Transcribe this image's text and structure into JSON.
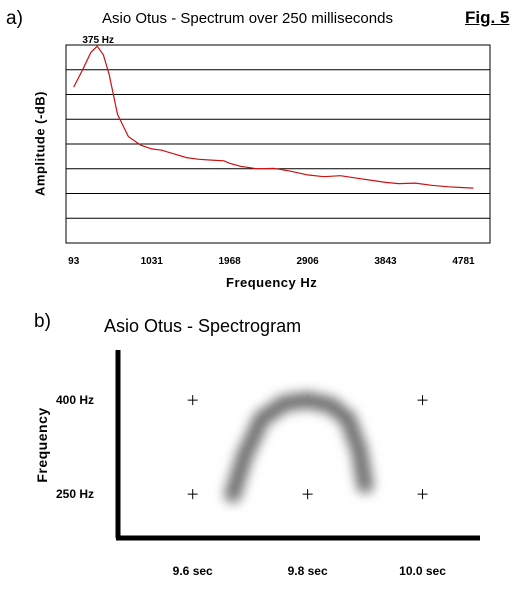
{
  "figure": {
    "panel_a_label": "a)",
    "panel_b_label": "b)",
    "fig_label": "Fig. 5"
  },
  "chart_data": [
    {
      "type": "line",
      "title": "Asio Otus - Spectrum over 250 milliseconds",
      "xlabel": "Frequency  Hz",
      "ylabel": "Amplitude (-dB)",
      "x_tick_labels": [
        "93",
        "1031",
        "1968",
        "2906",
        "3843",
        "4781"
      ],
      "x_ticks": [
        93,
        1031,
        1968,
        2906,
        3843,
        4781
      ],
      "xlim": [
        0,
        5100
      ],
      "ylim": [
        0,
        8
      ],
      "grid": "horizontal",
      "line_color": "#cc1111",
      "annotation": {
        "text": "375 Hz",
        "x": 375
      },
      "series": [
        {
          "x": [
            93,
            200,
            300,
            375,
            450,
            520,
            620,
            750,
            900,
            1031,
            1150,
            1300,
            1450,
            1600,
            1750,
            1900,
            1968,
            2100,
            2300,
            2500,
            2700,
            2906,
            3100,
            3300,
            3500,
            3700,
            3843,
            4000,
            4200,
            4400,
            4600,
            4781,
            4900
          ],
          "y": [
            6.3,
            7.0,
            7.7,
            7.95,
            7.6,
            6.8,
            5.2,
            4.3,
            3.95,
            3.8,
            3.75,
            3.6,
            3.45,
            3.38,
            3.35,
            3.32,
            3.22,
            3.1,
            3.0,
            3.02,
            2.9,
            2.75,
            2.68,
            2.72,
            2.62,
            2.52,
            2.45,
            2.4,
            2.42,
            2.33,
            2.27,
            2.24,
            2.22
          ]
        }
      ]
    },
    {
      "type": "heatmap",
      "title": "Asio Otus - Spectrogram",
      "xlabel": "",
      "ylabel": "Frequency",
      "y_tick_labels": [
        "400 Hz",
        "250 Hz"
      ],
      "x_tick_labels": [
        "9.6 sec",
        "9.8 sec",
        "10.0 sec"
      ],
      "x_ticks": [
        9.6,
        9.8,
        10.0
      ],
      "y_ticks": [
        400,
        250
      ],
      "xlim": [
        9.47,
        10.1
      ],
      "ylim": [
        180,
        480
      ],
      "grid": "cross markers",
      "blob_color": "#555555",
      "contour": {
        "time": [
          9.67,
          9.69,
          9.72,
          9.76,
          9.8,
          9.84,
          9.87,
          9.89,
          9.9
        ],
        "frequency": [
          250,
          310,
          370,
          395,
          400,
          392,
          370,
          320,
          265
        ]
      }
    }
  ]
}
